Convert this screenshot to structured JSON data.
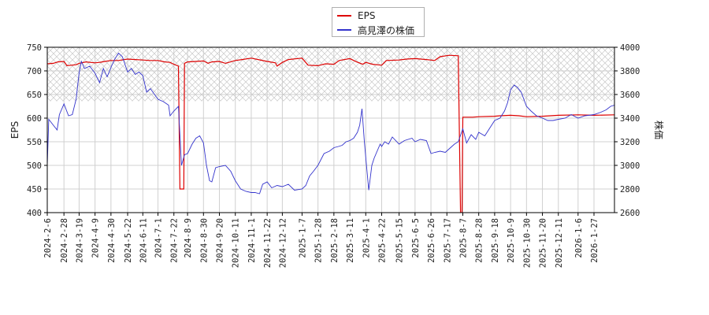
{
  "chart_data": {
    "type": "line",
    "title": "",
    "xlabel": "",
    "ylabel_left": "EPS",
    "ylabel_right": "株価",
    "y_left_lim": [
      400,
      750
    ],
    "y_right_lim": [
      2600,
      4000
    ],
    "y_left_ticks": [
      400,
      450,
      500,
      550,
      600,
      650,
      700,
      750
    ],
    "y_right_ticks": [
      2600,
      2800,
      3000,
      3200,
      3400,
      3600,
      3800,
      4000
    ],
    "x_lim": [
      "2024-02-06",
      "2026-02-23"
    ],
    "x_ticks": [
      "2024-2-6",
      "2024-2-28",
      "2024-3-19",
      "2024-4-9",
      "2024-4-30",
      "2024-5-22",
      "2024-6-11",
      "2024-7-1",
      "2024-7-22",
      "2024-8-9",
      "2024-8-30",
      "2024-9-20",
      "2024-10-11",
      "2024-11-1",
      "2024-11-22",
      "2024-12-12",
      "2025-1-7",
      "2025-1-28",
      "2025-2-18",
      "2025-3-11",
      "2025-4-1",
      "2025-4-22",
      "2025-5-15",
      "2025-6-5",
      "2025-6-26",
      "2025-7-17",
      "2025-8-7",
      "2025-8-28",
      "2025-9-18",
      "2025-10-9",
      "2025-10-30",
      "2025-11-20",
      "2025-12-11",
      "2026-1-6",
      "2026-1-27"
    ],
    "grid": true,
    "legend_position": "top-center",
    "hatched_band_left": [
      636,
      750
    ],
    "series": [
      {
        "name": "EPS",
        "axis": "left",
        "color": "#dd0000",
        "points": [
          [
            "2024-02-06",
            715
          ],
          [
            "2024-02-14",
            716
          ],
          [
            "2024-02-20",
            719
          ],
          [
            "2024-02-28",
            720
          ],
          [
            "2024-03-03",
            711
          ],
          [
            "2024-03-15",
            713
          ],
          [
            "2024-03-19",
            716
          ],
          [
            "2024-03-28",
            719
          ],
          [
            "2024-04-09",
            717
          ],
          [
            "2024-04-15",
            718
          ],
          [
            "2024-04-22",
            720
          ],
          [
            "2024-04-30",
            722
          ],
          [
            "2024-05-10",
            722
          ],
          [
            "2024-05-22",
            725
          ],
          [
            "2024-06-01",
            724
          ],
          [
            "2024-06-11",
            723
          ],
          [
            "2024-06-20",
            722
          ],
          [
            "2024-07-01",
            722
          ],
          [
            "2024-07-10",
            719
          ],
          [
            "2024-07-17",
            718
          ],
          [
            "2024-07-22",
            714
          ],
          [
            "2024-07-28",
            710
          ],
          [
            "2024-07-30",
            450
          ],
          [
            "2024-08-04",
            450
          ],
          [
            "2024-08-05",
            716
          ],
          [
            "2024-08-09",
            719
          ],
          [
            "2024-08-20",
            720
          ],
          [
            "2024-08-30",
            721
          ],
          [
            "2024-09-05",
            716
          ],
          [
            "2024-09-10",
            719
          ],
          [
            "2024-09-20",
            720
          ],
          [
            "2024-09-28",
            716
          ],
          [
            "2024-10-11",
            722
          ],
          [
            "2024-10-20",
            724
          ],
          [
            "2024-11-01",
            727
          ],
          [
            "2024-11-10",
            724
          ],
          [
            "2024-11-22",
            720
          ],
          [
            "2024-12-03",
            717
          ],
          [
            "2024-12-05",
            710
          ],
          [
            "2024-12-12",
            718
          ],
          [
            "2024-12-20",
            724
          ],
          [
            "2025-01-07",
            727
          ],
          [
            "2025-01-15",
            712
          ],
          [
            "2025-01-28",
            711
          ],
          [
            "2025-02-07",
            715
          ],
          [
            "2025-02-18",
            714
          ],
          [
            "2025-02-25",
            722
          ],
          [
            "2025-03-11",
            726
          ],
          [
            "2025-03-20",
            719
          ],
          [
            "2025-03-28",
            714
          ],
          [
            "2025-04-01",
            718
          ],
          [
            "2025-04-10",
            714
          ],
          [
            "2025-04-22",
            712
          ],
          [
            "2025-04-28",
            722
          ],
          [
            "2025-05-15",
            723
          ],
          [
            "2025-05-25",
            725
          ],
          [
            "2025-06-05",
            726
          ],
          [
            "2025-06-20",
            724
          ],
          [
            "2025-07-01",
            722
          ],
          [
            "2025-07-08",
            730
          ],
          [
            "2025-07-20",
            733
          ],
          [
            "2025-08-01",
            732
          ],
          [
            "2025-08-04",
            400
          ],
          [
            "2025-08-06",
            400
          ],
          [
            "2025-08-07",
            602
          ],
          [
            "2025-08-20",
            602
          ],
          [
            "2025-08-28",
            603
          ],
          [
            "2025-09-18",
            604
          ],
          [
            "2025-09-25",
            605
          ],
          [
            "2025-10-09",
            606
          ],
          [
            "2025-10-20",
            605
          ],
          [
            "2025-10-30",
            603
          ],
          [
            "2025-11-20",
            604
          ],
          [
            "2025-12-11",
            606
          ],
          [
            "2026-01-06",
            607
          ],
          [
            "2026-01-27",
            606
          ],
          [
            "2026-02-23",
            607
          ]
        ]
      },
      {
        "name": "高見澤の株価",
        "axis": "right",
        "color": "#3333cc",
        "points": [
          [
            "2024-02-06",
            3000
          ],
          [
            "2024-02-08",
            3390
          ],
          [
            "2024-02-14",
            3340
          ],
          [
            "2024-02-19",
            3300
          ],
          [
            "2024-02-22",
            3430
          ],
          [
            "2024-02-28",
            3520
          ],
          [
            "2024-03-05",
            3420
          ],
          [
            "2024-03-10",
            3430
          ],
          [
            "2024-03-15",
            3560
          ],
          [
            "2024-03-19",
            3780
          ],
          [
            "2024-03-22",
            3880
          ],
          [
            "2024-03-26",
            3820
          ],
          [
            "2024-04-02",
            3840
          ],
          [
            "2024-04-09",
            3780
          ],
          [
            "2024-04-15",
            3700
          ],
          [
            "2024-04-20",
            3820
          ],
          [
            "2024-04-25",
            3750
          ],
          [
            "2024-04-30",
            3830
          ],
          [
            "2024-05-05",
            3900
          ],
          [
            "2024-05-10",
            3950
          ],
          [
            "2024-05-15",
            3920
          ],
          [
            "2024-05-22",
            3790
          ],
          [
            "2024-05-27",
            3820
          ],
          [
            "2024-06-01",
            3770
          ],
          [
            "2024-06-06",
            3790
          ],
          [
            "2024-06-11",
            3760
          ],
          [
            "2024-06-16",
            3620
          ],
          [
            "2024-06-21",
            3650
          ],
          [
            "2024-07-01",
            3560
          ],
          [
            "2024-07-08",
            3540
          ],
          [
            "2024-07-15",
            3510
          ],
          [
            "2024-07-17",
            3420
          ],
          [
            "2024-07-22",
            3460
          ],
          [
            "2024-07-28",
            3500
          ],
          [
            "2024-08-01",
            3000
          ],
          [
            "2024-08-05",
            3090
          ],
          [
            "2024-08-09",
            3100
          ],
          [
            "2024-08-15",
            3180
          ],
          [
            "2024-08-20",
            3230
          ],
          [
            "2024-08-25",
            3250
          ],
          [
            "2024-08-30",
            3190
          ],
          [
            "2024-09-03",
            3000
          ],
          [
            "2024-09-07",
            2870
          ],
          [
            "2024-09-10",
            2860
          ],
          [
            "2024-09-15",
            2980
          ],
          [
            "2024-09-20",
            2990
          ],
          [
            "2024-09-28",
            3000
          ],
          [
            "2024-10-05",
            2950
          ],
          [
            "2024-10-11",
            2870
          ],
          [
            "2024-10-18",
            2800
          ],
          [
            "2024-10-25",
            2780
          ],
          [
            "2024-11-01",
            2770
          ],
          [
            "2024-11-06",
            2770
          ],
          [
            "2024-11-12",
            2760
          ],
          [
            "2024-11-16",
            2840
          ],
          [
            "2024-11-22",
            2860
          ],
          [
            "2024-11-28",
            2810
          ],
          [
            "2024-12-05",
            2830
          ],
          [
            "2024-12-12",
            2820
          ],
          [
            "2024-12-20",
            2840
          ],
          [
            "2024-12-28",
            2790
          ],
          [
            "2025-01-07",
            2800
          ],
          [
            "2025-01-12",
            2830
          ],
          [
            "2025-01-17",
            2910
          ],
          [
            "2025-01-22",
            2950
          ],
          [
            "2025-01-28",
            3000
          ],
          [
            "2025-02-05",
            3100
          ],
          [
            "2025-02-12",
            3120
          ],
          [
            "2025-02-18",
            3150
          ],
          [
            "2025-02-24",
            3160
          ],
          [
            "2025-03-01",
            3170
          ],
          [
            "2025-03-06",
            3200
          ],
          [
            "2025-03-11",
            3210
          ],
          [
            "2025-03-16",
            3230
          ],
          [
            "2025-03-21",
            3280
          ],
          [
            "2025-03-24",
            3340
          ],
          [
            "2025-03-27",
            3480
          ],
          [
            "2025-03-30",
            3210
          ],
          [
            "2025-04-02",
            3000
          ],
          [
            "2025-04-05",
            2790
          ],
          [
            "2025-04-09",
            3000
          ],
          [
            "2025-04-12",
            3060
          ],
          [
            "2025-04-16",
            3120
          ],
          [
            "2025-04-20",
            3180
          ],
          [
            "2025-04-22",
            3160
          ],
          [
            "2025-04-26",
            3200
          ],
          [
            "2025-05-01",
            3180
          ],
          [
            "2025-05-06",
            3240
          ],
          [
            "2025-05-15",
            3180
          ],
          [
            "2025-05-22",
            3210
          ],
          [
            "2025-06-01",
            3230
          ],
          [
            "2025-06-05",
            3200
          ],
          [
            "2025-06-12",
            3220
          ],
          [
            "2025-06-20",
            3210
          ],
          [
            "2025-06-26",
            3100
          ],
          [
            "2025-07-01",
            3110
          ],
          [
            "2025-07-08",
            3120
          ],
          [
            "2025-07-15",
            3110
          ],
          [
            "2025-07-20",
            3140
          ],
          [
            "2025-07-27",
            3180
          ],
          [
            "2025-08-01",
            3200
          ],
          [
            "2025-08-07",
            3310
          ],
          [
            "2025-08-12",
            3190
          ],
          [
            "2025-08-18",
            3260
          ],
          [
            "2025-08-24",
            3220
          ],
          [
            "2025-08-28",
            3280
          ],
          [
            "2025-09-05",
            3250
          ],
          [
            "2025-09-12",
            3320
          ],
          [
            "2025-09-18",
            3380
          ],
          [
            "2025-09-25",
            3400
          ],
          [
            "2025-10-01",
            3460
          ],
          [
            "2025-10-05",
            3530
          ],
          [
            "2025-10-09",
            3640
          ],
          [
            "2025-10-14",
            3680
          ],
          [
            "2025-10-18",
            3660
          ],
          [
            "2025-10-23",
            3620
          ],
          [
            "2025-10-30",
            3500
          ],
          [
            "2025-11-05",
            3460
          ],
          [
            "2025-11-12",
            3420
          ],
          [
            "2025-11-20",
            3400
          ],
          [
            "2025-11-27",
            3380
          ],
          [
            "2025-12-04",
            3380
          ],
          [
            "2025-12-11",
            3390
          ],
          [
            "2025-12-20",
            3400
          ],
          [
            "2025-12-28",
            3430
          ],
          [
            "2026-01-06",
            3400
          ],
          [
            "2026-01-15",
            3420
          ],
          [
            "2026-01-27",
            3430
          ],
          [
            "2026-02-05",
            3450
          ],
          [
            "2026-02-12",
            3470
          ],
          [
            "2026-02-18",
            3500
          ],
          [
            "2026-02-23",
            3510
          ]
        ]
      }
    ]
  }
}
